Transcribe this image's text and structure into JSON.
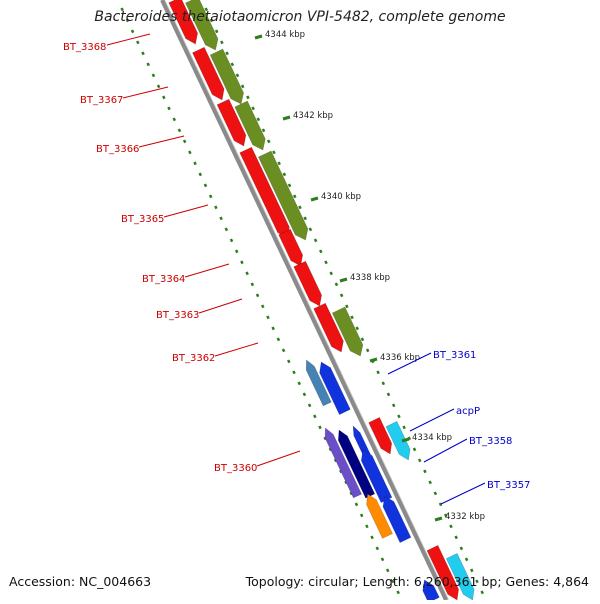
{
  "title": "Bacteroides thetaiotaomicron VPI-5482, complete genome",
  "footer": {
    "accession": "Accession: NC_004663",
    "summary": "Topology: circular; Length: 6,260,361 bp; Genes: 4,864"
  },
  "colors": {
    "backbone": "#8a8a8a",
    "tick": "#2e7d1e",
    "red_gene": "#ee1111",
    "olive_gene": "#6b8e23",
    "blue_gene": "#1133dd",
    "navy_gene": "#000080",
    "violet_gene": "#6a4fc9",
    "steel_gene": "#4682b4",
    "orange_gene": "#ff8c00",
    "cyan_gene": "#22ccee",
    "left_label": "#cc0000",
    "right_label": "#0000cc"
  },
  "scale_labels": [
    {
      "text": "4344 kbp",
      "kbp": 4344
    },
    {
      "text": "4342 kbp",
      "kbp": 4342
    },
    {
      "text": "4340 kbp",
      "kbp": 4340
    },
    {
      "text": "4338 kbp",
      "kbp": 4338
    },
    {
      "text": "4336 kbp",
      "kbp": 4336
    },
    {
      "text": "4334 kbp",
      "kbp": 4334
    },
    {
      "text": "4332 kbp",
      "kbp": 4332
    }
  ],
  "gene_labels_left": [
    "BT_3368",
    "BT_3367",
    "BT_3366",
    "BT_3365",
    "BT_3364",
    "BT_3363",
    "BT_3362",
    "BT_3360"
  ],
  "gene_labels_right": [
    "BT_3361",
    "acpP",
    "BT_3358",
    "BT_3357"
  ]
}
